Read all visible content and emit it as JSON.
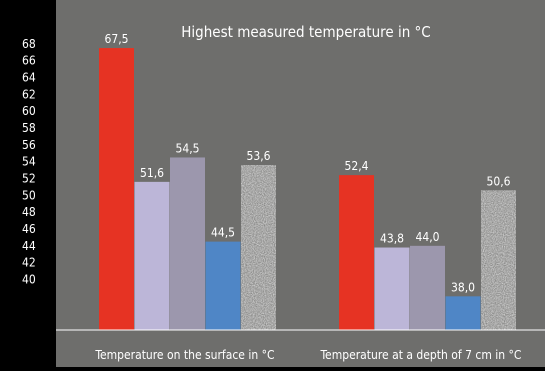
{
  "chart_data": {
    "type": "bar",
    "title": "Highest measured temperature in  °C",
    "categories": [
      "Temperature on the surface in °C",
      "Temperature at a depth of 7 cm in °C"
    ],
    "series": [
      {
        "values": [
          67.5,
          52.4
        ],
        "labels": [
          "67,5",
          "52,4"
        ],
        "color": "#e63323",
        "pattern": "solid"
      },
      {
        "values": [
          51.6,
          43.8
        ],
        "labels": [
          "51,6",
          "43,8"
        ],
        "color": "#bcb6d8",
        "pattern": "solid"
      },
      {
        "values": [
          54.5,
          44.0
        ],
        "labels": [
          "54,5",
          "44,0"
        ],
        "color": "#9c97ad",
        "pattern": "solid"
      },
      {
        "values": [
          44.5,
          38.0
        ],
        "labels": [
          "44,5",
          "38,0"
        ],
        "color": "#4f86c6",
        "pattern": "solid"
      },
      {
        "values": [
          53.6,
          50.6
        ],
        "labels": [
          "53,6",
          "50,6"
        ],
        "color": "#c6c6c6",
        "pattern": "speckle"
      }
    ],
    "ylim": [
      34,
      70
    ],
    "yticks": [
      "40",
      "42",
      "44",
      "46",
      "48",
      "50",
      "52",
      "54",
      "56",
      "58",
      "60",
      "62",
      "64",
      "66",
      "68"
    ],
    "ytick_values": [
      40,
      42,
      44,
      46,
      48,
      50,
      52,
      54,
      56,
      58,
      60,
      62,
      64,
      66,
      68
    ],
    "xlabel": "",
    "ylabel": "",
    "grid": false,
    "legend": "none",
    "colors": {
      "plot_background": "#6e6e6c",
      "axis_strip": "#000000",
      "text": "#ffffff",
      "baseline": "#ffffff"
    }
  }
}
